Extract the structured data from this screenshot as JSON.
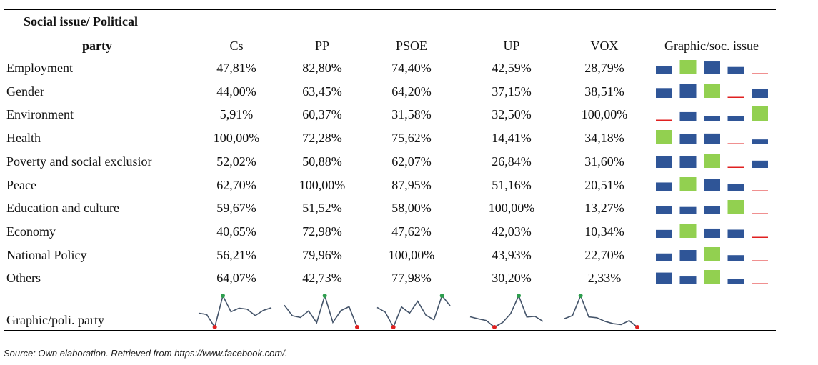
{
  "table": {
    "header": {
      "issue_line1": "Social issue/ Political",
      "issue_line2": "party",
      "parties": [
        "Cs",
        "PP",
        "PSOE",
        "UP",
        "VOX"
      ],
      "graphic_col": "Graphic/soc. issue"
    },
    "rows": [
      {
        "label": "Employment",
        "values": [
          "47,81%",
          "82,80%",
          "74,40%",
          "42,59%",
          "28,79%"
        ],
        "nums": [
          47.81,
          82.8,
          74.4,
          42.59,
          28.79
        ]
      },
      {
        "label": "Gender",
        "values": [
          "44,00%",
          "63,45%",
          "64,20%",
          "37,15%",
          "38,51%"
        ],
        "nums": [
          44.0,
          63.45,
          64.2,
          37.15,
          38.51
        ]
      },
      {
        "label": "Environment",
        "values": [
          "5,91%",
          "60,37%",
          "31,58%",
          "32,50%",
          "100,00%"
        ],
        "nums": [
          5.91,
          60.37,
          31.58,
          32.5,
          100.0
        ]
      },
      {
        "label": "Health",
        "values": [
          "100,00%",
          "72,28%",
          "75,62%",
          "14,41%",
          "34,18%"
        ],
        "nums": [
          100.0,
          72.28,
          75.62,
          14.41,
          34.18
        ]
      },
      {
        "label": "Poverty and social exclusior",
        "values": [
          "52,02%",
          "50,88%",
          "62,07%",
          "26,84%",
          "31,60%"
        ],
        "nums": [
          52.02,
          50.88,
          62.07,
          26.84,
          31.6
        ]
      },
      {
        "label": "Peace",
        "values": [
          "62,70%",
          "100,00%",
          "87,95%",
          "51,16%",
          "20,51%"
        ],
        "nums": [
          62.7,
          100.0,
          87.95,
          51.16,
          20.51
        ]
      },
      {
        "label": "Education and culture",
        "values": [
          "59,67%",
          "51,52%",
          "58,00%",
          "100,00%",
          "13,27%"
        ],
        "nums": [
          59.67,
          51.52,
          58.0,
          100.0,
          13.27
        ]
      },
      {
        "label": "Economy",
        "values": [
          "40,65%",
          "72,98%",
          "47,62%",
          "42,03%",
          "10,34%"
        ],
        "nums": [
          40.65,
          72.98,
          47.62,
          42.03,
          10.34
        ]
      },
      {
        "label": "National Policy",
        "values": [
          "56,21%",
          "79,96%",
          "100,00%",
          "43,93%",
          "22,70%"
        ],
        "nums": [
          56.21,
          79.96,
          100.0,
          43.93,
          22.7
        ]
      },
      {
        "label": "Others",
        "values": [
          "64,07%",
          "42,73%",
          "77,98%",
          "30,20%",
          "2,33%"
        ],
        "nums": [
          64.07,
          42.73,
          77.98,
          30.2,
          2.33
        ]
      }
    ],
    "spark_row_label": "Graphic/poli. party"
  },
  "colors": {
    "bar_blue": "#2f5597",
    "bar_green": "#92d050",
    "bar_red": "#e02020",
    "spark_line": "#44546a",
    "spark_high": "#2e9e4e",
    "spark_low": "#e02020"
  },
  "footnote": "Source: Own elaboration. Retrieved from https://www.facebook.com/."
}
